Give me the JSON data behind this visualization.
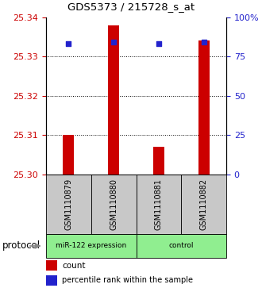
{
  "title": "GDS5373 / 215728_s_at",
  "samples": [
    "GSM1110879",
    "GSM1110880",
    "GSM1110881",
    "GSM1110882"
  ],
  "bar_values": [
    25.31,
    25.338,
    25.307,
    25.334
  ],
  "percentile_values": [
    83,
    84,
    83,
    84
  ],
  "ylim_left": [
    25.3,
    25.34
  ],
  "ylim_right": [
    0,
    100
  ],
  "yticks_left": [
    25.3,
    25.31,
    25.32,
    25.33,
    25.34
  ],
  "yticks_right": [
    0,
    25,
    50,
    75,
    100
  ],
  "bar_color": "#cc0000",
  "dot_color": "#2222cc",
  "left_axis_color": "#cc0000",
  "right_axis_color": "#2222cc",
  "plot_bg": "#ffffff",
  "sample_box_color": "#c8c8c8",
  "group1_label": "miR-122 expression",
  "group2_label": "control",
  "group_color": "#90ee90",
  "protocol_label": "protocol",
  "legend_count_color": "#cc0000",
  "legend_dot_color": "#2222cc",
  "bar_width": 0.25,
  "grid_ticks": [
    25.31,
    25.32,
    25.33
  ]
}
